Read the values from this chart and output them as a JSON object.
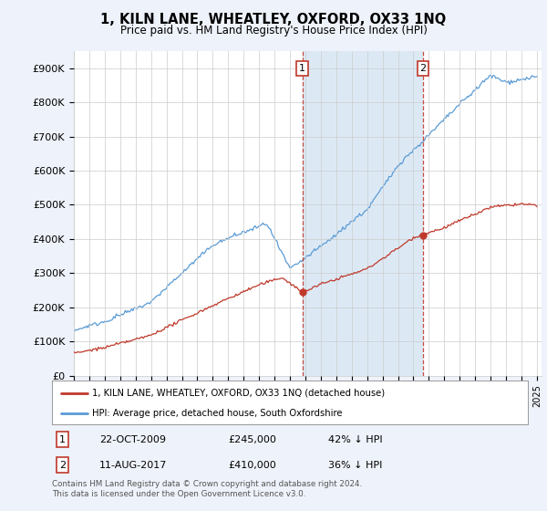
{
  "title": "1, KILN LANE, WHEATLEY, OXFORD, OX33 1NQ",
  "subtitle": "Price paid vs. HM Land Registry's House Price Index (HPI)",
  "ylim": [
    0,
    950000
  ],
  "yticks": [
    0,
    100000,
    200000,
    300000,
    400000,
    500000,
    600000,
    700000,
    800000,
    900000
  ],
  "ytick_labels": [
    "£0",
    "£100K",
    "£200K",
    "£300K",
    "£400K",
    "£500K",
    "£600K",
    "£700K",
    "£800K",
    "£900K"
  ],
  "xlim_start": 1995.0,
  "xlim_end": 2025.3,
  "hpi_color": "#5b9bd5",
  "hpi_shade_color": "#dce9f5",
  "price_color": "#c0392b",
  "marker1_x": 2009.8,
  "marker1_y": 245000,
  "marker2_x": 2017.62,
  "marker2_y": 410000,
  "legend_label1": "1, KILN LANE, WHEATLEY, OXFORD, OX33 1NQ (detached house)",
  "legend_label2": "HPI: Average price, detached house, South Oxfordshire",
  "table_row1": [
    "1",
    "22-OCT-2009",
    "£245,000",
    "42% ↓ HPI"
  ],
  "table_row2": [
    "2",
    "11-AUG-2017",
    "£410,000",
    "36% ↓ HPI"
  ],
  "footer": "Contains HM Land Registry data © Crown copyright and database right 2024.\nThis data is licensed under the Open Government Licence v3.0.",
  "background_color": "#eef2fa",
  "plot_bg_color": "#ffffff"
}
